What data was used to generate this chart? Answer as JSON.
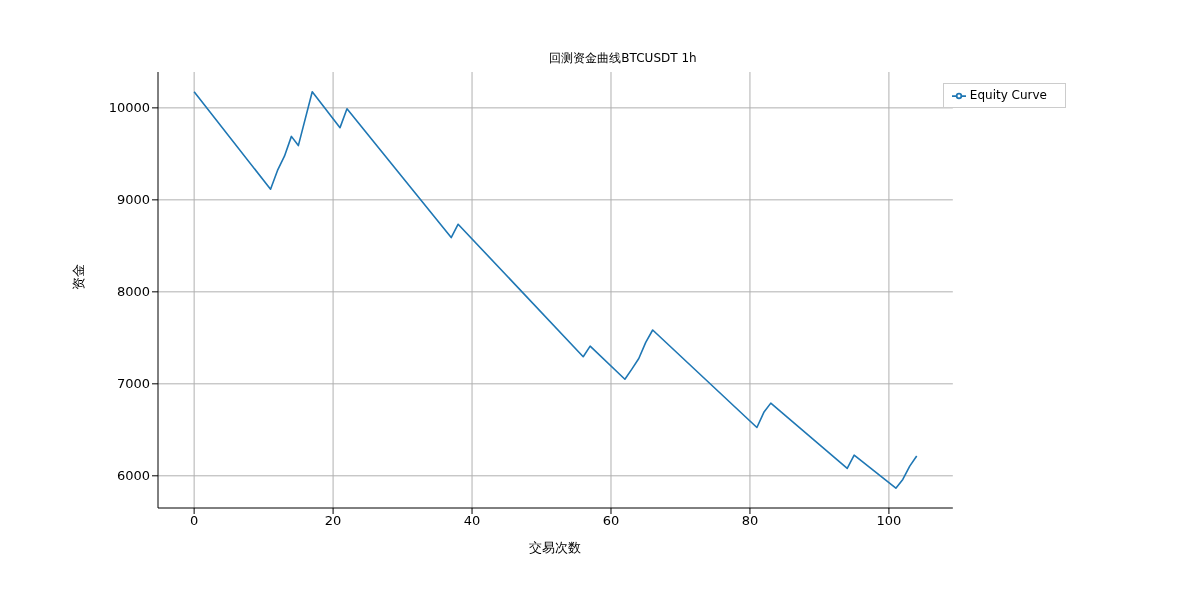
{
  "chart_data": {
    "type": "line",
    "title": "回测资金曲线BTCUSDT 1h",
    "xlabel": "交易次数",
    "ylabel": "资金",
    "x": [
      0,
      11,
      12,
      13,
      14,
      15,
      17,
      21,
      22,
      37,
      38,
      56,
      57,
      62,
      63,
      64,
      65,
      66,
      81,
      82,
      83,
      94,
      95,
      101,
      102,
      103,
      104
    ],
    "series": [
      {
        "name": "Equity Curve",
        "color": "#1f77b4",
        "values": [
          10175,
          9115,
          9320,
          9475,
          9690,
          9590,
          10175,
          9785,
          9990,
          8590,
          8735,
          7295,
          7410,
          7050,
          7160,
          7275,
          7450,
          7585,
          6525,
          6690,
          6790,
          6080,
          6225,
          5865,
          5960,
          6105,
          6215
        ]
      }
    ],
    "xlim": [
      -5.2,
      109.2
    ],
    "xticks": [
      0,
      20,
      40,
      60,
      80,
      100
    ],
    "ylim": [
      5650,
      10390
    ],
    "yticks": [
      6000,
      7000,
      8000,
      9000,
      10000
    ],
    "grid": true,
    "legend": "top right",
    "marker": "none",
    "line_style": "solid"
  }
}
